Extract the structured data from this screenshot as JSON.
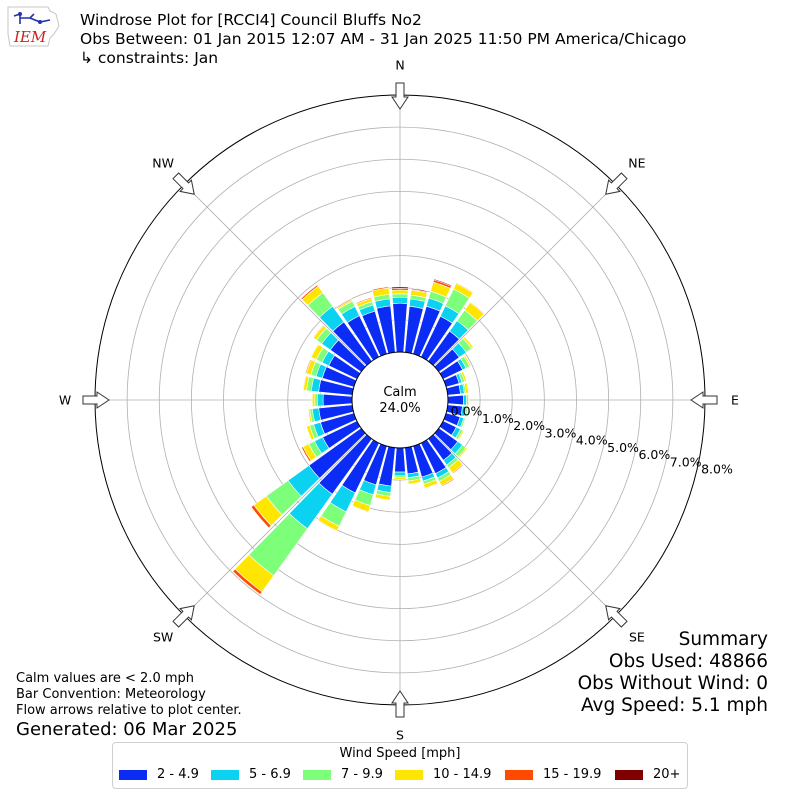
{
  "header": {
    "title": "Windrose Plot for [RCCI4] Council Bluffs No2",
    "subtitle": "Obs Between: 01 Jan 2015 12:07 AM - 31 Jan 2025 11:50 PM America/Chicago",
    "constraints": "↳ constraints: Jan"
  },
  "logo": {
    "text": "IEM",
    "color": "#cc2222"
  },
  "summary": {
    "title": "Summary",
    "obs_used": "Obs Used: 48866",
    "obs_without_wind": "Obs Without Wind: 0",
    "avg_speed": "Avg Speed: 5.1 mph"
  },
  "notes": {
    "calm_note": "Calm values are < 2.0 mph",
    "bar_convention": "Bar Convention: Meteorology",
    "flow_arrows": "Flow arrows relative to plot center.",
    "generated": "Generated: 06 Mar 2025"
  },
  "center": {
    "label": "Calm",
    "value": "24.0%"
  },
  "legend": {
    "title": "Wind Speed [mph]",
    "items": [
      {
        "label": "2 - 4.9",
        "color": "#0a2cf5"
      },
      {
        "label": "5 - 6.9",
        "color": "#0ad2f0"
      },
      {
        "label": "7 - 9.9",
        "color": "#7dff7a"
      },
      {
        "label": "10 - 14.9",
        "color": "#ffe600"
      },
      {
        "label": "15 - 19.9",
        "color": "#ff4a00"
      },
      {
        "label": "20+",
        "color": "#800000"
      }
    ]
  },
  "chart_data": {
    "type": "windrose",
    "calm_percent": 24.0,
    "radial_ticks": [
      "0.0%",
      "1.0%",
      "2.0%",
      "3.0%",
      "4.0%",
      "5.0%",
      "6.0%",
      "7.0%",
      "8.0%"
    ],
    "radial_max": 8.0,
    "direction_labels": [
      "N",
      "NE",
      "E",
      "SE",
      "S",
      "SW",
      "W",
      "NW"
    ],
    "bins": [
      "2 - 4.9",
      "5 - 6.9",
      "7 - 9.9",
      "10 - 14.9",
      "15 - 19.9",
      "20+"
    ],
    "directions_deg": [
      0,
      10,
      20,
      30,
      40,
      50,
      60,
      70,
      80,
      90,
      100,
      110,
      120,
      130,
      140,
      150,
      160,
      170,
      180,
      190,
      200,
      210,
      220,
      230,
      240,
      250,
      260,
      270,
      280,
      290,
      300,
      310,
      320,
      330,
      340,
      350
    ],
    "values": [
      [
        1.52,
        0.18,
        0.11,
        0.12,
        0.05,
        0.05
      ],
      [
        1.44,
        0.23,
        0.12,
        0.15,
        0.03,
        0.03
      ],
      [
        1.54,
        0.26,
        0.22,
        0.3,
        0.07,
        0.03
      ],
      [
        1.4,
        0.36,
        0.58,
        0.2,
        0.02,
        0.0
      ],
      [
        1.15,
        0.4,
        0.4,
        0.3,
        0.02,
        0.0
      ],
      [
        0.78,
        0.27,
        0.2,
        0.07,
        0.0,
        0.0
      ],
      [
        0.67,
        0.12,
        0.12,
        0.05,
        0.0,
        0.0
      ],
      [
        0.42,
        0.09,
        0.09,
        0.06,
        0.0,
        0.0
      ],
      [
        0.4,
        0.12,
        0.05,
        0.08,
        0.0,
        0.0
      ],
      [
        0.48,
        0.1,
        0.06,
        0.03,
        0.0,
        0.0
      ],
      [
        0.46,
        0.12,
        0.05,
        0.02,
        0.0,
        0.0
      ],
      [
        0.45,
        0.12,
        0.05,
        0.02,
        0.0,
        0.0
      ],
      [
        0.45,
        0.15,
        0.08,
        0.04,
        0.0,
        0.0
      ],
      [
        0.72,
        0.18,
        0.14,
        0.05,
        0.0,
        0.0
      ],
      [
        0.82,
        0.18,
        0.1,
        0.2,
        0.03,
        0.0
      ],
      [
        1.05,
        0.15,
        0.12,
        0.15,
        0.03,
        0.0
      ],
      [
        1.0,
        0.13,
        0.1,
        0.13,
        0.02,
        0.0
      ],
      [
        0.82,
        0.12,
        0.1,
        0.1,
        0.0,
        0.0
      ],
      [
        0.75,
        0.12,
        0.05,
        0.06,
        0.0,
        0.0
      ],
      [
        1.2,
        0.2,
        0.12,
        0.12,
        0.0,
        0.0
      ],
      [
        1.25,
        0.32,
        0.35,
        0.2,
        0.02,
        0.0
      ],
      [
        1.72,
        0.65,
        0.5,
        0.16,
        0.02,
        0.0
      ],
      [
        2.12,
        1.32,
        1.8,
        0.62,
        0.1,
        0.0
      ],
      [
        2.0,
        0.8,
        0.83,
        0.48,
        0.1,
        0.0
      ],
      [
        1.18,
        0.28,
        0.2,
        0.2,
        0.05,
        0.0
      ],
      [
        1.08,
        0.22,
        0.13,
        0.1,
        0.0,
        0.0
      ],
      [
        1.05,
        0.2,
        0.08,
        0.05,
        0.0,
        0.0
      ],
      [
        0.9,
        0.18,
        0.08,
        0.08,
        0.02,
        0.0
      ],
      [
        1.05,
        0.23,
        0.15,
        0.1,
        0.02,
        0.0
      ],
      [
        1.02,
        0.2,
        0.17,
        0.15,
        0.03,
        0.0
      ],
      [
        0.97,
        0.23,
        0.2,
        0.18,
        0.02,
        0.0
      ],
      [
        1.18,
        0.33,
        0.2,
        0.12,
        0.02,
        0.0
      ],
      [
        1.5,
        0.6,
        0.52,
        0.25,
        0.05,
        0.0
      ],
      [
        1.42,
        0.32,
        0.18,
        0.05,
        0.03,
        0.0
      ],
      [
        1.38,
        0.2,
        0.11,
        0.1,
        0.03,
        0.0
      ],
      [
        1.45,
        0.22,
        0.14,
        0.2,
        0.04,
        0.02
      ]
    ]
  }
}
